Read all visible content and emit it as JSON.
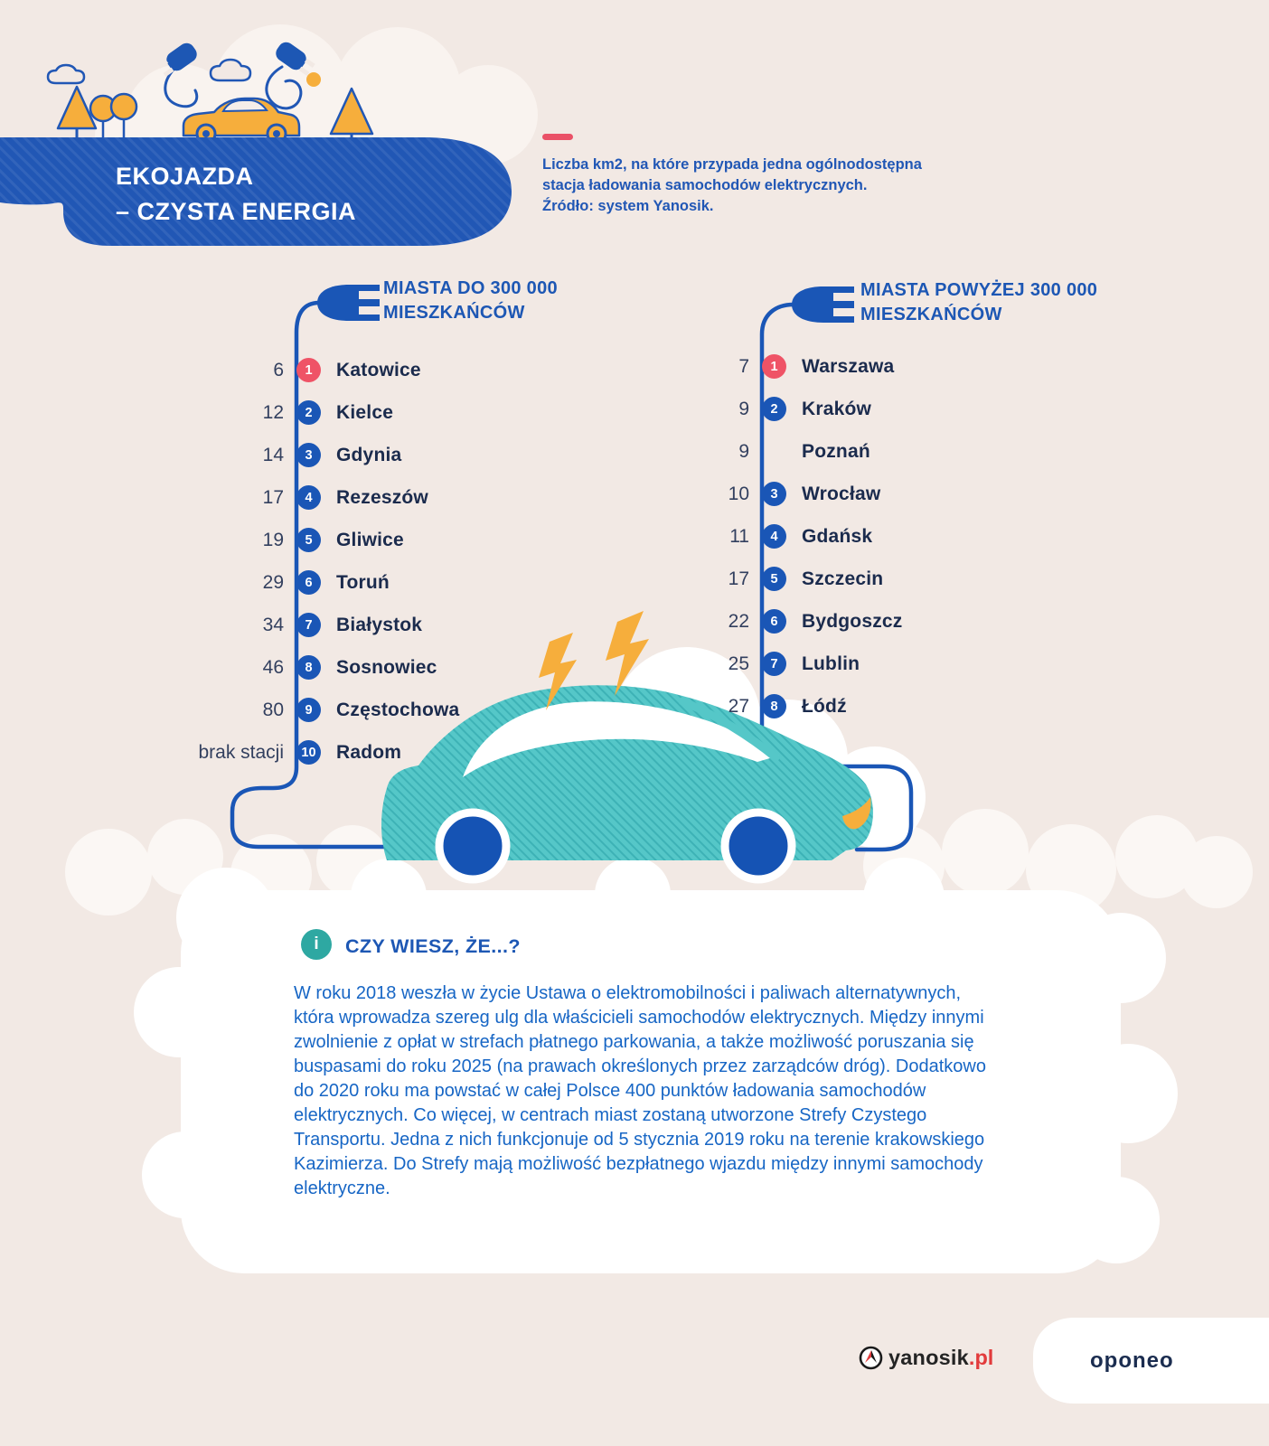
{
  "colors": {
    "background": "#f2e9e4",
    "primary_blue": "#2157b5",
    "badge_blue": "#1a56b6",
    "badge_red": "#ef5366",
    "navy_text": "#1b2b4d",
    "paragraph_blue": "#1766c5",
    "teal_car": "#55c7c8",
    "yellow": "#f6ae3c",
    "info_teal": "#2ea8a2",
    "oponeo_navy": "#1b2d50",
    "yanosik_red": "#e23b3c"
  },
  "header": {
    "title": "EKOJAZDA\n– CZYSTA ENERGIA"
  },
  "legend": {
    "text": "Liczba km2, na które przypada jedna ogólnodostępna\nstacja ładowania samochodów elektrycznych.\nŹródło: system Yanosik."
  },
  "lists": [
    {
      "title": "MIASTA DO 300 000\nMIESZKAŃCÓW",
      "items": [
        {
          "value": "6",
          "rank": "1",
          "city": "Katowice",
          "badge_color": "#ef5366"
        },
        {
          "value": "12",
          "rank": "2",
          "city": "Kielce",
          "badge_color": "#1a56b6"
        },
        {
          "value": "14",
          "rank": "3",
          "city": "Gdynia",
          "badge_color": "#1a56b6"
        },
        {
          "value": "17",
          "rank": "4",
          "city": "Rezeszów",
          "badge_color": "#1a56b6"
        },
        {
          "value": "19",
          "rank": "5",
          "city": "Gliwice",
          "badge_color": "#1a56b6"
        },
        {
          "value": "29",
          "rank": "6",
          "city": "Toruń",
          "badge_color": "#1a56b6"
        },
        {
          "value": "34",
          "rank": "7",
          "city": "Białystok",
          "badge_color": "#1a56b6"
        },
        {
          "value": "46",
          "rank": "8",
          "city": "Sosnowiec",
          "badge_color": "#1a56b6"
        },
        {
          "value": "80",
          "rank": "9",
          "city": "Częstochowa",
          "badge_color": "#1a56b6"
        },
        {
          "value": "brak stacji",
          "rank": "10",
          "city": "Radom",
          "badge_color": "#1a56b6"
        }
      ]
    },
    {
      "title": "MIASTA POWYŻEJ 300 000\nMIESZKAŃCÓW",
      "items": [
        {
          "value": "7",
          "rank": "1",
          "city": "Warszawa",
          "badge_color": "#ef5366"
        },
        {
          "value": "9",
          "rank": "2",
          "city": "Kraków",
          "badge_color": "#1a56b6"
        },
        {
          "value": "9",
          "rank": null,
          "city": "Poznań",
          "badge_color": null
        },
        {
          "value": "10",
          "rank": "3",
          "city": "Wrocław",
          "badge_color": "#1a56b6"
        },
        {
          "value": "11",
          "rank": "4",
          "city": "Gdańsk",
          "badge_color": "#1a56b6"
        },
        {
          "value": "17",
          "rank": "5",
          "city": "Szczecin",
          "badge_color": "#1a56b6"
        },
        {
          "value": "22",
          "rank": "6",
          "city": "Bydgoszcz",
          "badge_color": "#1a56b6"
        },
        {
          "value": "25",
          "rank": "7",
          "city": "Lublin",
          "badge_color": "#1a56b6"
        },
        {
          "value": "27",
          "rank": "8",
          "city": "Łódź",
          "badge_color": "#1a56b6"
        }
      ]
    }
  ],
  "info": {
    "icon_glyph": "i",
    "title": "CZY WIESZ, ŻE...?",
    "paragraph": "W roku 2018 weszła w życie Ustawa o elektromobilności i paliwach alternatywnych, która wprowadza szereg ulg dla właścicieli samochodów elektrycznych. Między innymi zwolnienie z opłat w strefach płatnego parkowania, a także możliwość poruszania się buspasami do roku 2025 (na prawach określonych przez zarządców dróg). Dodatkowo do 2020 roku ma powstać w całej Polsce 400 punktów ładowania samochodów elektrycznych. Co więcej, w centrach miast zostaną utworzone Strefy Czystego Transportu. Jedna z nich funkcjonuje od 5 stycznia 2019 roku na terenie krakowskiego Kazimierza. Do Strefy mają możliwość bezpłatnego wjazdu między innymi samochody elektryczne."
  },
  "footer": {
    "yanosik": "yanosik",
    "yanosik_tld": ".pl",
    "oponeo": "oponeo"
  },
  "chart_data": [
    {
      "type": "table",
      "title": "MIASTA DO 300 000 MIESZKAŃCÓW",
      "value_meaning": "km2 na jedną ogólnodostępną stację ładowania",
      "categories": [
        "Katowice",
        "Kielce",
        "Gdynia",
        "Rezeszów",
        "Gliwice",
        "Toruń",
        "Białystok",
        "Sosnowiec",
        "Częstochowa",
        "Radom"
      ],
      "values": [
        6,
        12,
        14,
        17,
        19,
        29,
        34,
        46,
        80,
        null
      ],
      "ranks": [
        1,
        2,
        3,
        4,
        5,
        6,
        7,
        8,
        9,
        10
      ],
      "notes": {
        "Radom": "brak stacji"
      }
    },
    {
      "type": "table",
      "title": "MIASTA POWYŻEJ 300 000 MIESZKAŃCÓW",
      "value_meaning": "km2 na jedną ogólnodostępną stację ładowania",
      "categories": [
        "Warszawa",
        "Kraków",
        "Poznań",
        "Wrocław",
        "Gdańsk",
        "Szczecin",
        "Bydgoszcz",
        "Lublin",
        "Łódź"
      ],
      "values": [
        7,
        9,
        9,
        10,
        11,
        17,
        22,
        25,
        27
      ],
      "ranks": [
        1,
        2,
        null,
        3,
        4,
        5,
        6,
        7,
        8
      ]
    }
  ]
}
